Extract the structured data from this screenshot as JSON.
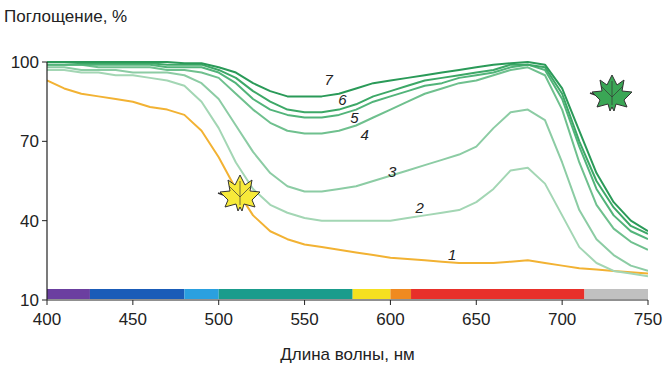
{
  "chart_data": {
    "type": "line",
    "y_label": "Поглощение, %",
    "x_label": "Длина волны, нм",
    "x": [
      400,
      410,
      420,
      430,
      440,
      450,
      460,
      470,
      480,
      490,
      500,
      510,
      520,
      530,
      540,
      550,
      560,
      570,
      580,
      590,
      600,
      610,
      620,
      630,
      640,
      650,
      660,
      670,
      680,
      690,
      700,
      710,
      720,
      730,
      740,
      750
    ],
    "xlim": [
      400,
      750
    ],
    "xticks": [
      400,
      450,
      500,
      550,
      600,
      650,
      700,
      750
    ],
    "ylim": [
      10,
      100
    ],
    "yticks": [
      10,
      40,
      70,
      100
    ],
    "grid": false,
    "series": [
      {
        "color": "#f2b233",
        "values": [
          93,
          90,
          88,
          87,
          86,
          85,
          83,
          82,
          80,
          74,
          64,
          52,
          42,
          36,
          33,
          31,
          30,
          29,
          28,
          27,
          26,
          25.5,
          25,
          24.5,
          24,
          24,
          24,
          24.5,
          25,
          24,
          23,
          22,
          21.5,
          21,
          20.5,
          20
        ]
      },
      {
        "color": "#a3d6b4",
        "values": [
          97,
          97,
          96,
          96,
          95,
          95,
          94,
          93,
          91,
          85,
          75,
          62,
          52,
          46,
          43,
          41,
          40,
          40,
          40,
          40,
          40,
          41,
          42,
          43,
          44,
          47,
          52,
          59,
          60,
          54,
          42,
          30,
          24,
          21,
          20,
          19
        ]
      },
      {
        "color": "#8ccca4",
        "values": [
          98,
          98,
          97,
          97,
          97,
          96,
          96,
          96,
          95,
          92,
          86,
          76,
          66,
          58,
          53,
          51,
          51,
          52,
          53,
          55,
          57,
          59,
          61,
          63,
          65,
          68,
          75,
          81,
          82,
          78,
          62,
          44,
          33,
          27,
          23,
          21
        ]
      },
      {
        "color": "#6fc08e",
        "values": [
          99,
          99,
          99,
          98,
          98,
          98,
          98,
          97,
          97,
          96,
          94,
          88,
          82,
          77,
          74,
          73,
          73,
          74,
          76,
          79,
          82,
          85,
          88,
          90,
          92,
          93,
          95,
          97,
          98,
          95,
          82,
          62,
          46,
          37,
          32,
          29
        ]
      },
      {
        "color": "#52b47a",
        "values": [
          99,
          99,
          99,
          99,
          99,
          99,
          99,
          98,
          98,
          98,
          96,
          92,
          86,
          82,
          80,
          79,
          79,
          80,
          82,
          85,
          87,
          89,
          91,
          92,
          94,
          95,
          96,
          98,
          99,
          97,
          86,
          68,
          52,
          42,
          36,
          33
        ]
      },
      {
        "color": "#3da867",
        "values": [
          100,
          100,
          99.5,
          99.5,
          99.5,
          99.5,
          99.5,
          99,
          99,
          99,
          97,
          94,
          89,
          85,
          82,
          81,
          81,
          82,
          84,
          87,
          89,
          91,
          93,
          94,
          95,
          96,
          97,
          99,
          99,
          98,
          88,
          70,
          55,
          45,
          38,
          35
        ]
      },
      {
        "color": "#2a9a58",
        "values": [
          100,
          100,
          100,
          100,
          100,
          100,
          100,
          100,
          99.5,
          99.5,
          98,
          96,
          92,
          89,
          87,
          87,
          87,
          88,
          90,
          92,
          93,
          94,
          95,
          96,
          97,
          98,
          99,
          99.5,
          100,
          99,
          90,
          74,
          58,
          47,
          40,
          36
        ]
      }
    ],
    "annotations": [
      {
        "text": "1",
        "x": 636,
        "y": 27
      },
      {
        "text": "2",
        "x": 617,
        "y": 44.8
      },
      {
        "text": "3",
        "x": 601,
        "y": 58.4
      },
      {
        "text": "4",
        "x": 585,
        "y": 72.4
      },
      {
        "text": "5",
        "x": 579,
        "y": 78.8
      },
      {
        "text": "6",
        "x": 572,
        "y": 85.6
      },
      {
        "text": "7",
        "x": 564,
        "y": 93.2
      }
    ],
    "spectrum": [
      {
        "from": 400,
        "to": 425,
        "color": "#6b3fa0"
      },
      {
        "from": 425,
        "to": 480,
        "color": "#1a5cb8"
      },
      {
        "from": 480,
        "to": 500,
        "color": "#2aa0e0"
      },
      {
        "from": 500,
        "to": 578,
        "color": "#1a9c8c"
      },
      {
        "from": 578,
        "to": 600,
        "color": "#f5e020"
      },
      {
        "from": 600,
        "to": 612,
        "color": "#f08a20"
      },
      {
        "from": 612,
        "to": 713,
        "color": "#e8302a"
      },
      {
        "from": 713,
        "to": 750,
        "color": "#c0c0c0"
      }
    ]
  }
}
